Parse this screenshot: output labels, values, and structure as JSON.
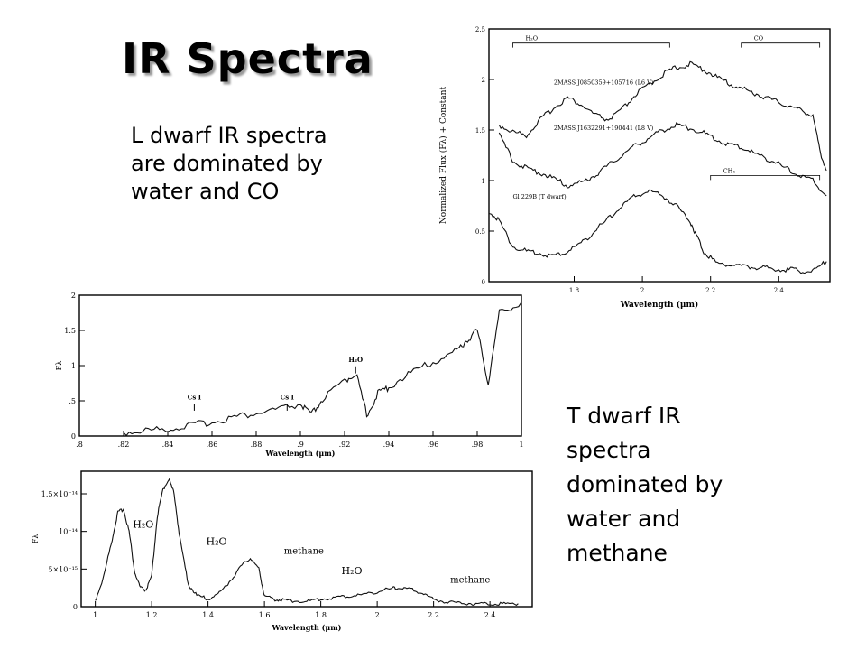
{
  "slide": {
    "title": "IR Spectra",
    "l_text": [
      "L dwarf IR spectra",
      "are dominated by",
      "water and CO"
    ],
    "t_text": [
      "T dwarf IR",
      "spectra",
      "dominated by",
      "water and",
      "methane"
    ]
  },
  "chart_data": [
    {
      "type": "line",
      "ylabel": "Normalized Flux (Fλ) + Constant",
      "xlabel": "Wavelength (μm)",
      "xlim": [
        1.55,
        2.55
      ],
      "ylim": [
        0,
        2.5
      ],
      "xticks": [
        1.8,
        2,
        2.2,
        2.4
      ],
      "xtick_labels": [
        "1.8",
        "2",
        "2.2",
        "2.4"
      ],
      "yticks": [
        0,
        0.5,
        1,
        1.5,
        2,
        2.5
      ],
      "ytick_labels": [
        "0",
        "0.5",
        "1",
        "1.5",
        "2",
        "2.5"
      ],
      "series": [
        {
          "name": "2MASS J0850359+105716 (L6 V)",
          "x": [
            1.58,
            1.62,
            1.66,
            1.7,
            1.74,
            1.78,
            1.82,
            1.86,
            1.9,
            1.94,
            1.98,
            2.02,
            2.06,
            2.1,
            2.14,
            2.18,
            2.22,
            2.26,
            2.3,
            2.34,
            2.38,
            2.42,
            2.46,
            2.5,
            2.52,
            2.54
          ],
          "y": [
            1.55,
            1.48,
            1.45,
            1.6,
            1.72,
            1.82,
            1.75,
            1.65,
            1.6,
            1.7,
            1.85,
            1.95,
            2.05,
            2.12,
            2.15,
            2.1,
            2.02,
            1.95,
            1.9,
            1.85,
            1.8,
            1.75,
            1.7,
            1.65,
            1.3,
            1.1
          ]
        },
        {
          "name": "2MASS J1632291+190441 (L8 V)",
          "x": [
            1.58,
            1.62,
            1.66,
            1.7,
            1.74,
            1.78,
            1.82,
            1.86,
            1.9,
            1.94,
            1.98,
            2.02,
            2.06,
            2.1,
            2.14,
            2.18,
            2.22,
            2.26,
            2.3,
            2.34,
            2.38,
            2.42,
            2.46,
            2.5,
            2.54
          ],
          "y": [
            1.45,
            1.2,
            1.12,
            1.08,
            1.02,
            0.95,
            0.98,
            1.05,
            1.15,
            1.25,
            1.35,
            1.42,
            1.5,
            1.55,
            1.52,
            1.47,
            1.4,
            1.35,
            1.32,
            1.25,
            1.2,
            1.12,
            1.05,
            1.0,
            0.85
          ]
        },
        {
          "name": "Gl 229B (T dwarf)",
          "x": [
            1.55,
            1.58,
            1.62,
            1.66,
            1.7,
            1.74,
            1.78,
            1.82,
            1.86,
            1.9,
            1.94,
            1.98,
            2.02,
            2.06,
            2.1,
            2.14,
            2.16,
            2.18,
            2.22,
            2.26,
            2.3,
            2.34,
            2.38,
            2.42,
            2.46,
            2.5,
            2.54
          ],
          "y": [
            0.7,
            0.6,
            0.35,
            0.3,
            0.28,
            0.25,
            0.3,
            0.38,
            0.5,
            0.62,
            0.75,
            0.85,
            0.9,
            0.85,
            0.75,
            0.6,
            0.45,
            0.3,
            0.18,
            0.17,
            0.15,
            0.14,
            0.13,
            0.12,
            0.11,
            0.1,
            0.2
          ]
        }
      ],
      "annotations": [
        {
          "label": "H₂O",
          "x": 1.62,
          "x_end": 2.08
        },
        {
          "label": "CO",
          "x": 2.29,
          "x_end": 2.52
        },
        {
          "label": "CH₄",
          "x": 2.2,
          "x_end": 2.52
        }
      ]
    },
    {
      "type": "line",
      "ylabel": "Fλ",
      "xlabel": "Wavelength (μm)",
      "xlim": [
        0.8,
        1.0
      ],
      "ylim": [
        0,
        2
      ],
      "xticks": [
        0.8,
        0.82,
        0.84,
        0.86,
        0.88,
        0.9,
        0.92,
        0.94,
        0.96,
        0.98,
        1.0
      ],
      "xtick_labels": [
        ".8",
        ".82",
        ".84",
        ".86",
        ".88",
        ".9",
        ".92",
        ".94",
        ".96",
        ".98",
        "1"
      ],
      "yticks": [
        0,
        0.5,
        1,
        1.5,
        2
      ],
      "ytick_labels": [
        "0",
        ".5",
        "1",
        "1.5",
        "2"
      ],
      "series": [
        {
          "name": "",
          "x": [
            0.82,
            0.83,
            0.84,
            0.85,
            0.86,
            0.87,
            0.88,
            0.89,
            0.9,
            0.905,
            0.91,
            0.92,
            0.925,
            0.93,
            0.935,
            0.94,
            0.95,
            0.96,
            0.97,
            0.975,
            0.98,
            0.985,
            0.99,
            1.0
          ],
          "y": [
            0.05,
            0.08,
            0.1,
            0.15,
            0.2,
            0.27,
            0.32,
            0.38,
            0.45,
            0.3,
            0.52,
            0.78,
            0.9,
            0.3,
            0.6,
            0.7,
            0.9,
            1.05,
            1.2,
            1.35,
            1.5,
            0.75,
            1.75,
            1.9
          ]
        }
      ],
      "annotations": [
        {
          "label": "Cs I",
          "x": 0.852
        },
        {
          "label": "Cs I",
          "x": 0.894
        },
        {
          "label": "H₂O",
          "x": 0.925
        }
      ]
    },
    {
      "type": "line",
      "ylabel": "Fλ",
      "xlabel": "Wavelength (μm)",
      "xlim": [
        0.95,
        2.55
      ],
      "ylim": [
        0,
        1.8e-14
      ],
      "xticks": [
        1,
        1.2,
        1.4,
        1.6,
        1.8,
        2,
        2.2,
        2.4
      ],
      "xtick_labels": [
        "1",
        "1.2",
        "1.4",
        "1.6",
        "1.8",
        "2",
        "2.2",
        "2.4"
      ],
      "yticks": [
        0,
        5e-15,
        1e-14,
        1.5e-14
      ],
      "ytick_labels": [
        "0",
        "5×10⁻¹⁵",
        "10⁻¹⁴",
        "1.5×10⁻¹⁴"
      ],
      "series": [
        {
          "name": "",
          "x": [
            1.0,
            1.03,
            1.06,
            1.08,
            1.1,
            1.12,
            1.14,
            1.16,
            1.18,
            1.2,
            1.22,
            1.24,
            1.26,
            1.28,
            1.3,
            1.33,
            1.36,
            1.4,
            1.44,
            1.48,
            1.52,
            1.55,
            1.58,
            1.6,
            1.63,
            1.66,
            1.7,
            1.75,
            1.8,
            1.85,
            1.9,
            1.95,
            2.0,
            2.05,
            2.08,
            2.12,
            2.16,
            2.2,
            2.25,
            2.3,
            2.35,
            2.4,
            2.45,
            2.5
          ],
          "y": [
            8e-16,
            4e-15,
            9e-15,
            1.25e-14,
            1.3e-14,
            1e-14,
            4.5e-15,
            2.5e-15,
            2.2e-15,
            4e-15,
            1.2e-14,
            1.55e-14,
            1.7e-14,
            1.5e-14,
            9e-15,
            3e-15,
            1.5e-15,
            1e-15,
            1.8e-15,
            3.5e-15,
            5.5e-15,
            6.5e-15,
            5e-15,
            1.5e-15,
            1e-15,
            9e-16,
            8e-16,
            7e-16,
            1e-15,
            1.2e-15,
            1.4e-15,
            1.6e-15,
            2e-15,
            2.4e-15,
            2.5e-15,
            2.3e-15,
            1.8e-15,
            1e-15,
            6e-16,
            5e-16,
            4e-16,
            4e-16,
            4e-16,
            4e-16
          ]
        }
      ],
      "annotations": [
        {
          "label": "H₂O",
          "x": 1.17
        },
        {
          "label": "H₂O",
          "x": 1.43
        },
        {
          "label": "methane",
          "x": 1.74
        },
        {
          "label": "H₂O",
          "x": 1.91
        },
        {
          "label": "methane",
          "x": 2.33
        }
      ]
    }
  ]
}
